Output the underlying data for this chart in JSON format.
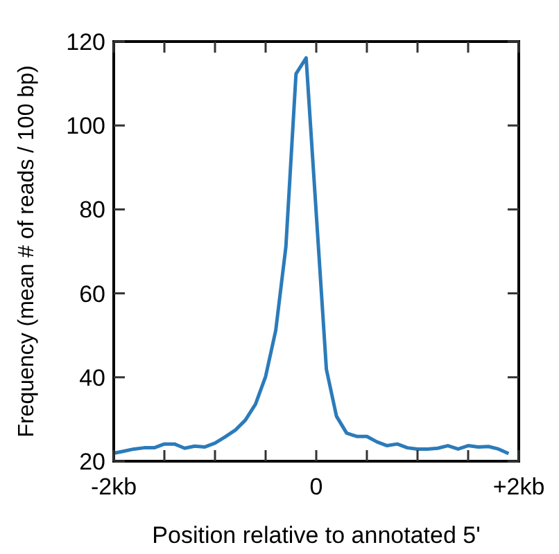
{
  "chart_data": {
    "type": "line",
    "xlabel": "Position relative to annotated 5'",
    "ylabel": "Frequency (mean # of reads / 100 bp)",
    "x": [
      -2,
      -1.9,
      -1.8,
      -1.7,
      -1.6,
      -1.5,
      -1.4,
      -1.3,
      -1.2,
      -1.1,
      -1,
      -0.9,
      -0.8,
      -0.7,
      -0.6,
      -0.5,
      -0.4,
      -0.3,
      -0.2,
      -0.1,
      0.1,
      0.2,
      0.3,
      0.4,
      0.5,
      0.6,
      0.7,
      0.8,
      0.9,
      1,
      1.1,
      1.2,
      1.3,
      1.4,
      1.5,
      1.6,
      1.7,
      1.8,
      1.9
    ],
    "series": [
      {
        "color": "#2b7bba",
        "values": [
          21.9,
          22.4,
          22.9,
          23.2,
          23.2,
          24.1,
          24.1,
          23.1,
          23.6,
          23.4,
          24.3,
          25.8,
          27.4,
          29.8,
          33.6,
          40.2,
          51.2,
          71.1,
          112.3,
          116.1,
          41.9,
          30.7,
          26.7,
          25.9,
          25.9,
          24.6,
          23.7,
          24.1,
          23.2,
          22.9,
          22.9,
          23.1,
          23.7,
          22.9,
          23.7,
          23.4,
          23.5,
          22.9,
          21.8
        ]
      }
    ],
    "xlim": [
      -2,
      2
    ],
    "xticks": [
      {
        "value": -2,
        "label": "-2kb"
      },
      {
        "value": -1.5,
        "label": null
      },
      {
        "value": -1,
        "label": null
      },
      {
        "value": -0.5,
        "label": null
      },
      0,
      {
        "value": 0.5,
        "label": null
      },
      {
        "value": 1,
        "label": null
      },
      {
        "value": 1.5,
        "label": null
      },
      {
        "value": 2,
        "label": "+2kb"
      }
    ],
    "ylim": [
      20,
      120
    ],
    "yticks": [
      20,
      40,
      60,
      80,
      100,
      120
    ],
    "grid": false,
    "marker": "none",
    "line_style": "solid"
  }
}
